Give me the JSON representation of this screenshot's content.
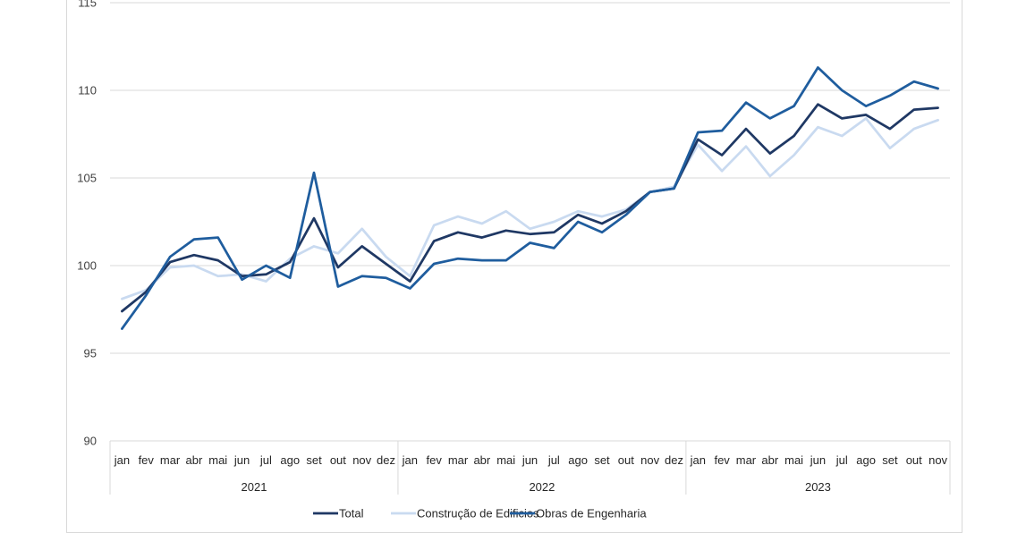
{
  "chart_data": {
    "type": "line",
    "ylim": [
      90,
      115
    ],
    "yticks": [
      90,
      95,
      100,
      105,
      110,
      115
    ],
    "grid": true,
    "legend_position": "bottom",
    "categories": [
      "jan",
      "fev",
      "mar",
      "abr",
      "mai",
      "jun",
      "jul",
      "ago",
      "set",
      "out",
      "nov",
      "dez",
      "jan",
      "fev",
      "mar",
      "abr",
      "mai",
      "jun",
      "jul",
      "ago",
      "set",
      "out",
      "nov",
      "dez",
      "jan",
      "fev",
      "mar",
      "abr",
      "mai",
      "jun",
      "jul",
      "ago",
      "set",
      "out",
      "nov"
    ],
    "years": [
      {
        "label": "2021",
        "count": 12
      },
      {
        "label": "2022",
        "count": 12
      },
      {
        "label": "2023",
        "count": 11
      }
    ],
    "series": [
      {
        "name": "Total",
        "color": "#1f3864",
        "values": [
          97.4,
          98.5,
          100.2,
          100.6,
          100.3,
          99.4,
          99.5,
          100.2,
          102.7,
          99.9,
          101.1,
          100.1,
          99.1,
          101.4,
          101.9,
          101.6,
          102.0,
          101.8,
          101.9,
          102.9,
          102.4,
          103.1,
          104.2,
          104.4,
          107.2,
          106.3,
          107.8,
          106.4,
          107.4,
          109.2,
          108.4,
          108.6,
          107.8,
          108.9,
          109.0
        ]
      },
      {
        "name": "Construção de Edificios",
        "color": "#c9daf0",
        "values": [
          98.1,
          98.6,
          99.9,
          100.0,
          99.4,
          99.5,
          99.1,
          100.4,
          101.1,
          100.7,
          102.1,
          100.5,
          99.4,
          102.3,
          102.8,
          102.4,
          103.1,
          102.1,
          102.5,
          103.1,
          102.8,
          103.2,
          104.2,
          104.5,
          106.9,
          105.4,
          106.8,
          105.1,
          106.3,
          107.9,
          107.4,
          108.4,
          106.7,
          107.8,
          108.3
        ]
      },
      {
        "name": "Obras de Engenharia",
        "color": "#1f5d9e",
        "values": [
          96.4,
          98.3,
          100.5,
          101.5,
          101.6,
          99.2,
          100.0,
          99.3,
          105.3,
          98.8,
          99.4,
          99.3,
          98.7,
          100.1,
          100.4,
          100.3,
          100.3,
          101.3,
          101.0,
          102.5,
          101.9,
          102.9,
          104.2,
          104.4,
          107.6,
          107.7,
          109.3,
          108.4,
          109.1,
          111.3,
          110.0,
          109.1,
          109.7,
          110.5,
          110.1
        ]
      }
    ]
  }
}
